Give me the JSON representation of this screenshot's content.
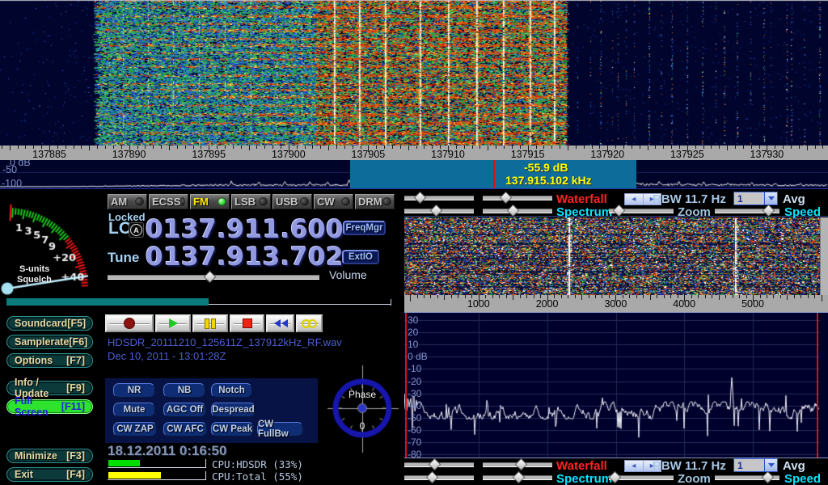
{
  "top_scale": {
    "unit_ticks": [
      "137885",
      "137890",
      "137895",
      "137900",
      "137905",
      "137910",
      "137915",
      "137920",
      "137925",
      "137930"
    ]
  },
  "main_spectrum": {
    "db_labels": [
      "0 dB",
      "-50",
      "-100"
    ],
    "marker_db": "-55.9 dB",
    "marker_freq": "137.915.102 kHz"
  },
  "smeter": {
    "ticks": [
      "1",
      "3",
      "5",
      "7",
      "9",
      "+20",
      "+40"
    ],
    "line1": "S-units",
    "line2": "Squelch"
  },
  "modes": {
    "items": [
      "AM",
      "ECSS",
      "FM",
      "LSB",
      "USB",
      "CW",
      "DRM"
    ],
    "active": "FM"
  },
  "lo": {
    "status": "Locked",
    "label": "LO",
    "badge": "A",
    "value": "0137.911.600"
  },
  "tune": {
    "label": "Tune",
    "value": "0137.913.702"
  },
  "side": {
    "freqmgr": "FreqMgr",
    "extio": "ExtIO",
    "volume": "Volume"
  },
  "left_buttons": [
    {
      "label": "Soundcard",
      "key": "[F5]",
      "highlight": false
    },
    {
      "label": "Samplerate",
      "key": "[F6]",
      "highlight": false
    },
    {
      "label": "Options",
      "key": "[F7]",
      "highlight": false
    },
    {
      "label": "Info / Update",
      "key": "[F9]",
      "highlight": false
    },
    {
      "label": "Full Screen",
      "key": "[F11]",
      "highlight": true
    },
    {
      "label": "Minimize",
      "key": "[F3]",
      "highlight": false
    },
    {
      "label": "Exit",
      "key": "[F4]",
      "highlight": false
    }
  ],
  "recorder": {
    "file": "HDSDR_20111210_125611Z_137912kHz_RF.wav",
    "date": "Dec 10, 2011 - 13:01:28Z",
    "buttons": [
      "record",
      "play",
      "pause",
      "stop",
      "rewind",
      "loop"
    ]
  },
  "dsp": {
    "rows": [
      [
        "NR",
        "NB",
        "Notch"
      ],
      [
        "Mute",
        "AGC Off",
        "Despread"
      ],
      [
        "CW ZAP",
        "CW AFC",
        "CW Peak",
        "CW FullBw"
      ]
    ]
  },
  "phase": {
    "label": "Phase",
    "value": "0"
  },
  "status": {
    "datetime": "18.12.2011 0:16:50",
    "cpu": [
      {
        "label": "CPU:HDSDR (33%)",
        "pct": 33,
        "color": "#00dd00"
      },
      {
        "label": "CPU:Total (55%)",
        "pct": 55,
        "color": "#ffff00"
      }
    ]
  },
  "right_controls": {
    "waterfall": "Waterfall",
    "spectrum": "Spectrum",
    "rbw": "RBW 11.7 Hz",
    "zoom": "Zoom",
    "avg": "Avg",
    "speed": "Speed",
    "avg_value": "1"
  },
  "right_scale": {
    "ticks": [
      "1000",
      "2000",
      "3000",
      "4000",
      "5000"
    ]
  },
  "right_spectrum": {
    "db_ticks": [
      "30",
      "20",
      "10",
      "0 dB",
      "-10",
      "-20",
      "-30",
      "-40",
      "-50",
      "-60",
      "-70",
      "-80"
    ]
  },
  "colors": {
    "waterfall_label": "#ff2222",
    "spectrum_label": "#00e6ff",
    "marker": "#ffff00",
    "highlight": "#0d6c99",
    "fullscreen_bg": "#2de32d",
    "fullscreen_text": "#2222dd"
  }
}
